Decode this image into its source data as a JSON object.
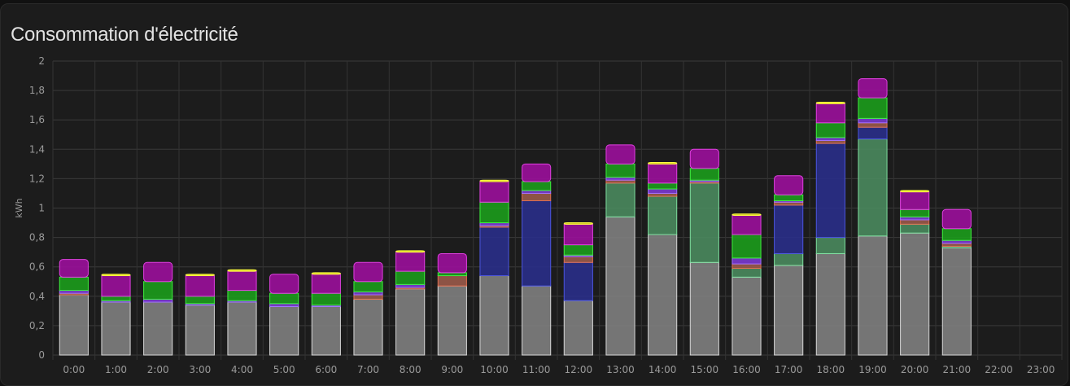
{
  "card": {
    "title": "Consommation d'électricité"
  },
  "chart_data": {
    "type": "bar",
    "stacked": true,
    "ylabel": "kWh",
    "ylim": [
      0,
      2
    ],
    "yticks": [
      "0",
      "0,2",
      "0,4",
      "0,6",
      "0,8",
      "1",
      "1,2",
      "1,4",
      "1,6",
      "1,8",
      "2"
    ],
    "grid": true,
    "categories": [
      "0:00",
      "1:00",
      "2:00",
      "3:00",
      "4:00",
      "5:00",
      "6:00",
      "7:00",
      "8:00",
      "9:00",
      "10:00",
      "11:00",
      "12:00",
      "13:00",
      "14:00",
      "15:00",
      "16:00",
      "17:00",
      "18:00",
      "19:00",
      "20:00",
      "21:00",
      "22:00",
      "23:00"
    ],
    "series": [
      {
        "color": "#808080",
        "stroke": "#d8d8d8",
        "values": [
          0.41,
          0.36,
          0.36,
          0.34,
          0.36,
          0.33,
          0.33,
          0.38,
          0.45,
          0.47,
          0.54,
          0.47,
          0.37,
          0.94,
          0.82,
          0.63,
          0.53,
          0.61,
          0.69,
          0.81,
          0.83,
          0.73,
          0,
          0
        ]
      },
      {
        "color": "#4a8a5e",
        "stroke": "#7fe0a0",
        "values": [
          0,
          0,
          0,
          0,
          0,
          0,
          0,
          0,
          0,
          0,
          0,
          0,
          0,
          0.23,
          0.26,
          0.54,
          0.06,
          0.08,
          0.11,
          0.66,
          0.06,
          0.01,
          0,
          0
        ]
      },
      {
        "color": "#2a2f8a",
        "stroke": "#4c55e0",
        "values": [
          0,
          0,
          0,
          0,
          0,
          0,
          0,
          0,
          0,
          0,
          0.33,
          0.58,
          0.26,
          0,
          0,
          0,
          0,
          0.33,
          0.64,
          0.08,
          0,
          0,
          0,
          0
        ]
      },
      {
        "color": "#9a5a4a",
        "stroke": "#e07050",
        "values": [
          0.01,
          0,
          0,
          0,
          0,
          0,
          0,
          0.03,
          0.01,
          0.07,
          0.01,
          0.05,
          0.04,
          0.02,
          0.02,
          0.01,
          0.03,
          0.02,
          0.02,
          0.03,
          0.03,
          0.02,
          0,
          0
        ]
      },
      {
        "color": "#7a3ad0",
        "stroke": "#a070ff",
        "values": [
          0.02,
          0.01,
          0.02,
          0.01,
          0.01,
          0.02,
          0.01,
          0.02,
          0.02,
          0,
          0.02,
          0.02,
          0.01,
          0.02,
          0.03,
          0.01,
          0.04,
          0.01,
          0.02,
          0.03,
          0.02,
          0.02,
          0,
          0
        ]
      },
      {
        "color": "#1c9c1c",
        "stroke": "#3ef03e",
        "values": [
          0.09,
          0.03,
          0.12,
          0.05,
          0.07,
          0.07,
          0.08,
          0.07,
          0.09,
          0.02,
          0.14,
          0.06,
          0.07,
          0.09,
          0.04,
          0.08,
          0.16,
          0.04,
          0.1,
          0.14,
          0.05,
          0.08,
          0,
          0
        ]
      },
      {
        "color": "#9b0f9b",
        "stroke": "#e040e0",
        "values": [
          0.12,
          0.14,
          0.13,
          0.14,
          0.13,
          0.13,
          0.13,
          0.13,
          0.13,
          0.13,
          0.14,
          0.12,
          0.14,
          0.13,
          0.13,
          0.13,
          0.13,
          0.13,
          0.13,
          0.13,
          0.12,
          0.13,
          0,
          0
        ]
      },
      {
        "color": "#e0e020",
        "stroke": "#ffff40",
        "values": [
          0,
          0.01,
          0,
          0.01,
          0.01,
          0,
          0.01,
          0,
          0.01,
          0,
          0.01,
          0,
          0.01,
          0,
          0.01,
          0,
          0.01,
          0,
          0.01,
          0,
          0.01,
          0,
          0,
          0
        ]
      }
    ]
  }
}
